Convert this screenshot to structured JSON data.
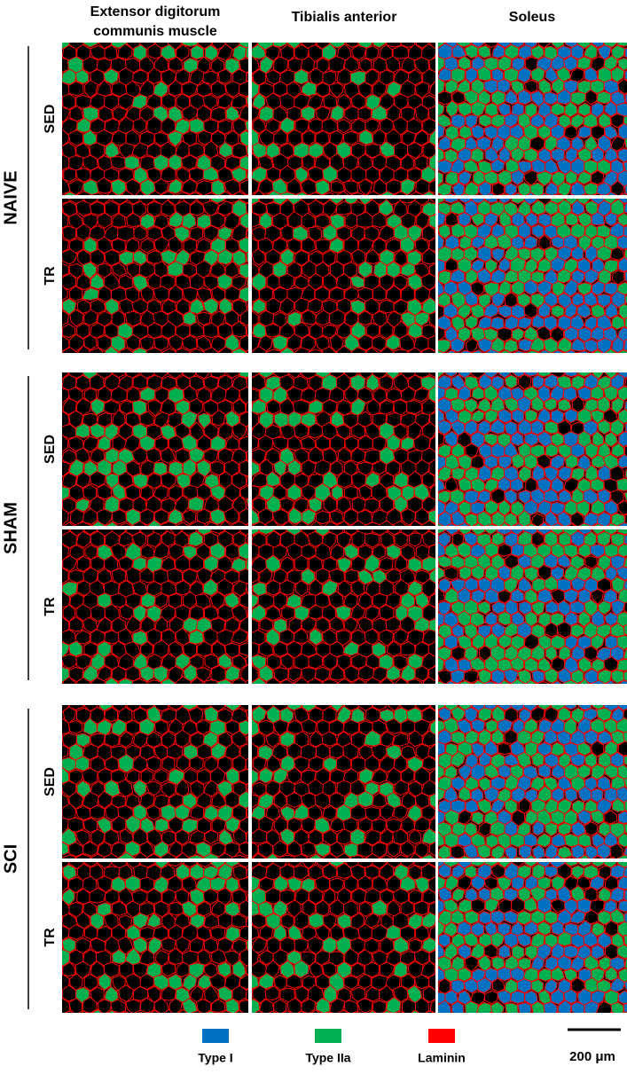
{
  "columns": [
    {
      "lines": [
        "Extensor digitorum",
        "communis muscle"
      ]
    },
    {
      "lines": [
        "Tibialis anterior"
      ]
    },
    {
      "lines": [
        "Soleus"
      ]
    }
  ],
  "groups": [
    {
      "label": "NAIVE",
      "rows": [
        "SED",
        "TR"
      ]
    },
    {
      "label": "SHAM",
      "rows": [
        "SED",
        "TR"
      ]
    },
    {
      "label": "SCI",
      "rows": [
        "SED",
        "TR"
      ]
    }
  ],
  "legend": [
    {
      "label": "Type I",
      "color": "#0070c0"
    },
    {
      "label": "Type IIa",
      "color": "#00b050"
    },
    {
      "label": "Laminin",
      "color": "#ff0000"
    }
  ],
  "scale_bar": {
    "label": "200 μm"
  }
}
